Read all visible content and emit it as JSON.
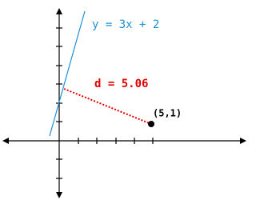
{
  "line_label": "y = 3x + 2",
  "distance_label": "d = 5.06",
  "point_label": "(5,1)"
}
